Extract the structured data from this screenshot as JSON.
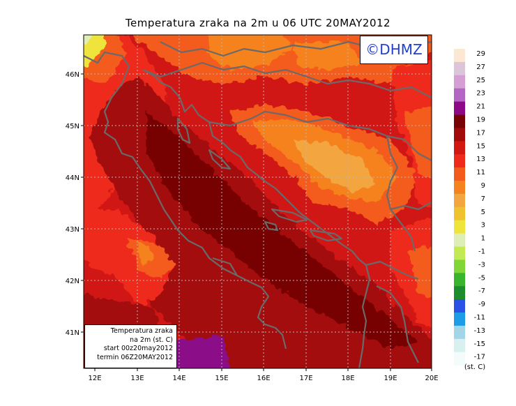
{
  "title": "Temperatura zraka na 2m u 06 UTC 20MAY2012",
  "logo": "©DHMZ",
  "info_box": [
    "Temperatura zraka",
    "na 2m (st. C)",
    "start 00z20may2012",
    "termin 06Z20MAY2012"
  ],
  "lat_labels": [
    "46N",
    "45N",
    "44N",
    "43N",
    "42N",
    "41N"
  ],
  "lon_labels": [
    "12E",
    "13E",
    "14E",
    "15E",
    "16E",
    "17E",
    "18E",
    "19E",
    "20E"
  ],
  "legend": {
    "unit": "(st. C)",
    "labels": [
      "29",
      "27",
      "25",
      "23",
      "21",
      "19",
      "17",
      "15",
      "13",
      "11",
      "9",
      "7",
      "5",
      "3",
      "1",
      "-1",
      "-3",
      "-5",
      "-7",
      "-9",
      "-11",
      "-13",
      "-15",
      "-17"
    ],
    "colors": [
      "#fbe7d2",
      "#dcc4d9",
      "#d59fd3",
      "#b565c4",
      "#8c0a88",
      "#770304",
      "#a30a0a",
      "#d11912",
      "#ee2a1b",
      "#f35b1c",
      "#f5821f",
      "#f3a540",
      "#efc230",
      "#efe43a",
      "#dfeeb4",
      "#c2ea55",
      "#7fd635",
      "#36b52d",
      "#1d8c2a",
      "#2b52e7",
      "#1e9de7",
      "#a2d6e6",
      "#d8f1f0",
      "#f3fbfb"
    ]
  },
  "colors": {
    "coast": "#6a6a6a",
    "grid": "#b8b8b8"
  }
}
